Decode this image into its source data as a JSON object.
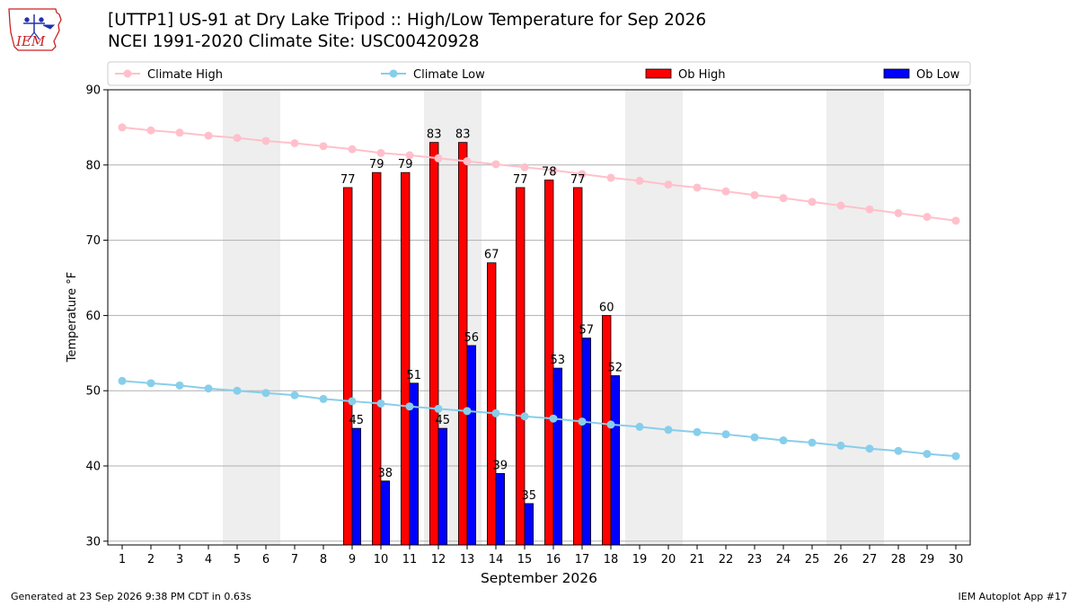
{
  "title_line1": "[UTTP1] US-91 at Dry Lake Tripod :: High/Low Temperature for Sep 2026",
  "title_line2": "NCEI 1991-2020 Climate Site: USC00420928",
  "logo_text": "IEM",
  "footer_left": "Generated at 23 Sep 2026 9:38 PM CDT in 0.63s",
  "footer_right": "IEM Autoplot App #17",
  "colors": {
    "climate_high": "#ffc0cb",
    "climate_low": "#87ceeb",
    "ob_high": "#ff0000",
    "ob_low": "#0000ff",
    "weekend_band": "#eeeeee",
    "logo_red": "#cc2222",
    "logo_blue": "#2233aa"
  },
  "chart_data": {
    "type": "bar",
    "xlabel": "September 2026",
    "ylabel": "Temperature °F",
    "xlim": [
      0.5,
      30.5
    ],
    "ylim": [
      29.5,
      90
    ],
    "yticks": [
      30,
      40,
      50,
      60,
      70,
      80,
      90
    ],
    "grid": "horizontal",
    "legend_position": "top",
    "categories": [
      1,
      2,
      3,
      4,
      5,
      6,
      7,
      8,
      9,
      10,
      11,
      12,
      13,
      14,
      15,
      16,
      17,
      18,
      19,
      20,
      21,
      22,
      23,
      24,
      25,
      26,
      27,
      28,
      29,
      30
    ],
    "shaded_days": [
      [
        5,
        6
      ],
      [
        12,
        13
      ],
      [
        19,
        20
      ],
      [
        26,
        27
      ]
    ],
    "series": [
      {
        "name": "Climate High",
        "type": "line",
        "values": [
          85.0,
          84.6,
          84.3,
          83.9,
          83.6,
          83.2,
          82.9,
          82.5,
          82.1,
          81.6,
          81.3,
          80.9,
          80.5,
          80.1,
          79.7,
          79.3,
          78.8,
          78.3,
          77.9,
          77.4,
          77.0,
          76.5,
          76.0,
          75.6,
          75.1,
          74.6,
          74.1,
          73.6,
          73.1,
          72.6
        ]
      },
      {
        "name": "Climate Low",
        "type": "line",
        "values": [
          51.3,
          51.0,
          50.7,
          50.3,
          50.0,
          49.7,
          49.4,
          48.9,
          48.6,
          48.3,
          47.9,
          47.6,
          47.3,
          47.0,
          46.6,
          46.3,
          45.9,
          45.5,
          45.2,
          44.8,
          44.5,
          44.2,
          43.8,
          43.4,
          43.1,
          42.7,
          42.3,
          42.0,
          41.6,
          41.3
        ]
      },
      {
        "name": "Ob High",
        "type": "bar",
        "x": [
          9,
          10,
          11,
          12,
          13,
          14,
          15,
          16,
          17,
          18
        ],
        "values": [
          77,
          79,
          79,
          83,
          83,
          67,
          77,
          78,
          77,
          60
        ]
      },
      {
        "name": "Ob Low",
        "type": "bar",
        "x": [
          9,
          10,
          11,
          12,
          13,
          14,
          15,
          16,
          17,
          18
        ],
        "values": [
          45,
          38,
          51,
          45,
          56,
          39,
          35,
          53,
          57,
          52
        ]
      }
    ]
  }
}
